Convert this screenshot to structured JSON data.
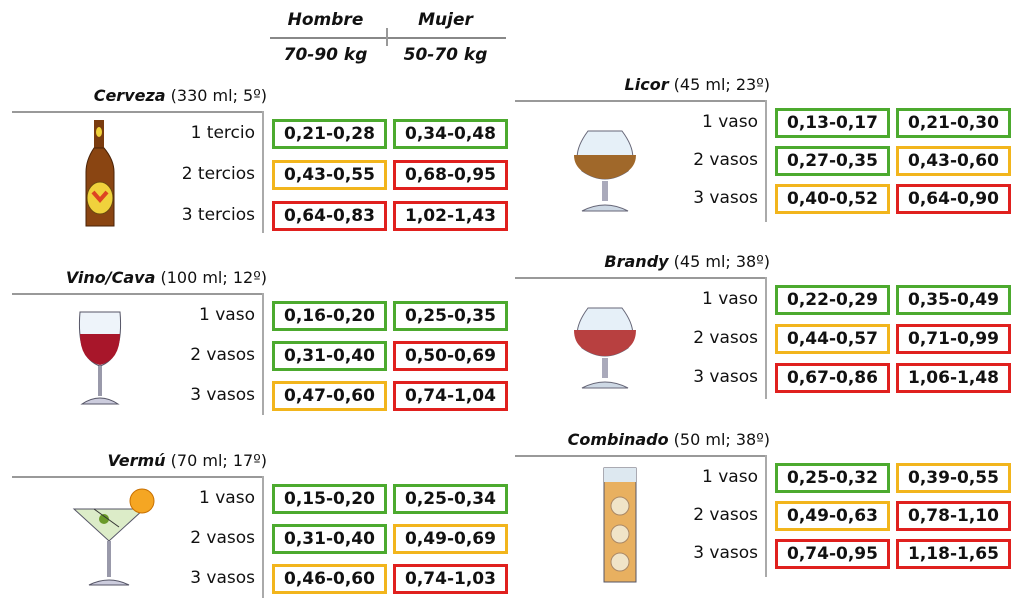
{
  "header": {
    "col1_title": "Hombre",
    "col1_sub": "70-90 kg",
    "col2_title": "Mujer",
    "col2_sub": "50-70 kg"
  },
  "colors": {
    "green": "#4caa2e",
    "yellow": "#f2b51c",
    "red": "#e0201e"
  },
  "sections": [
    {
      "name": "Cerveza",
      "spec": "(330 ml; 5º)",
      "icon": "beer-bottle-icon",
      "rows": [
        {
          "label": "1 tercio",
          "hombre": "0,21-0,28",
          "hombre_level": "green",
          "mujer": "0,34-0,48",
          "mujer_level": "green"
        },
        {
          "label": "2 tercios",
          "hombre": "0,43-0,55",
          "hombre_level": "yellow",
          "mujer": "0,68-0,95",
          "mujer_level": "red"
        },
        {
          "label": "3 tercios",
          "hombre": "0,64-0,83",
          "hombre_level": "red",
          "mujer": "1,02-1,43",
          "mujer_level": "red"
        }
      ]
    },
    {
      "name": "Vino/Cava",
      "spec": "(100 ml; 12º)",
      "icon": "wine-glass-icon",
      "rows": [
        {
          "label": "1 vaso",
          "hombre": "0,16-0,20",
          "hombre_level": "green",
          "mujer": "0,25-0,35",
          "mujer_level": "green"
        },
        {
          "label": "2 vasos",
          "hombre": "0,31-0,40",
          "hombre_level": "green",
          "mujer": "0,50-0,69",
          "mujer_level": "red"
        },
        {
          "label": "3 vasos",
          "hombre": "0,47-0,60",
          "hombre_level": "yellow",
          "mujer": "0,74-1,04",
          "mujer_level": "red"
        }
      ]
    },
    {
      "name": "Vermú",
      "spec": "(70 ml; 17º)",
      "icon": "cocktail-glass-icon",
      "rows": [
        {
          "label": "1 vaso",
          "hombre": "0,15-0,20",
          "hombre_level": "green",
          "mujer": "0,25-0,34",
          "mujer_level": "green"
        },
        {
          "label": "2 vasos",
          "hombre": "0,31-0,40",
          "hombre_level": "green",
          "mujer": "0,49-0,69",
          "mujer_level": "yellow"
        },
        {
          "label": "3 vasos",
          "hombre": "0,46-0,60",
          "hombre_level": "yellow",
          "mujer": "0,74-1,03",
          "mujer_level": "red"
        }
      ]
    },
    {
      "name": "Licor",
      "spec": "(45 ml; 23º)",
      "icon": "snifter-glass-icon",
      "rows": [
        {
          "label": "1 vaso",
          "hombre": "0,13-0,17",
          "hombre_level": "green",
          "mujer": "0,21-0,30",
          "mujer_level": "green"
        },
        {
          "label": "2 vasos",
          "hombre": "0,27-0,35",
          "hombre_level": "green",
          "mujer": "0,43-0,60",
          "mujer_level": "yellow"
        },
        {
          "label": "3 vasos",
          "hombre": "0,40-0,52",
          "hombre_level": "yellow",
          "mujer": "0,64-0,90",
          "mujer_level": "red"
        }
      ]
    },
    {
      "name": "Brandy",
      "spec": "(45 ml; 38º)",
      "icon": "brandy-glass-icon",
      "rows": [
        {
          "label": "1 vaso",
          "hombre": "0,22-0,29",
          "hombre_level": "green",
          "mujer": "0,35-0,49",
          "mujer_level": "green"
        },
        {
          "label": "2 vasos",
          "hombre": "0,44-0,57",
          "hombre_level": "yellow",
          "mujer": "0,71-0,99",
          "mujer_level": "red"
        },
        {
          "label": "3 vasos",
          "hombre": "0,67-0,86",
          "hombre_level": "red",
          "mujer": "1,06-1,48",
          "mujer_level": "red"
        }
      ]
    },
    {
      "name": "Combinado",
      "spec": "(50 ml; 38º)",
      "icon": "highball-glass-icon",
      "rows": [
        {
          "label": "1 vaso",
          "hombre": "0,25-0,32",
          "hombre_level": "green",
          "mujer": "0,39-0,55",
          "mujer_level": "yellow"
        },
        {
          "label": "2 vasos",
          "hombre": "0,49-0,63",
          "hombre_level": "yellow",
          "mujer": "0,78-1,10",
          "mujer_level": "red"
        },
        {
          "label": "3 vasos",
          "hombre": "0,74-0,95",
          "hombre_level": "red",
          "mujer": "1,18-1,65",
          "mujer_level": "red"
        }
      ]
    }
  ]
}
